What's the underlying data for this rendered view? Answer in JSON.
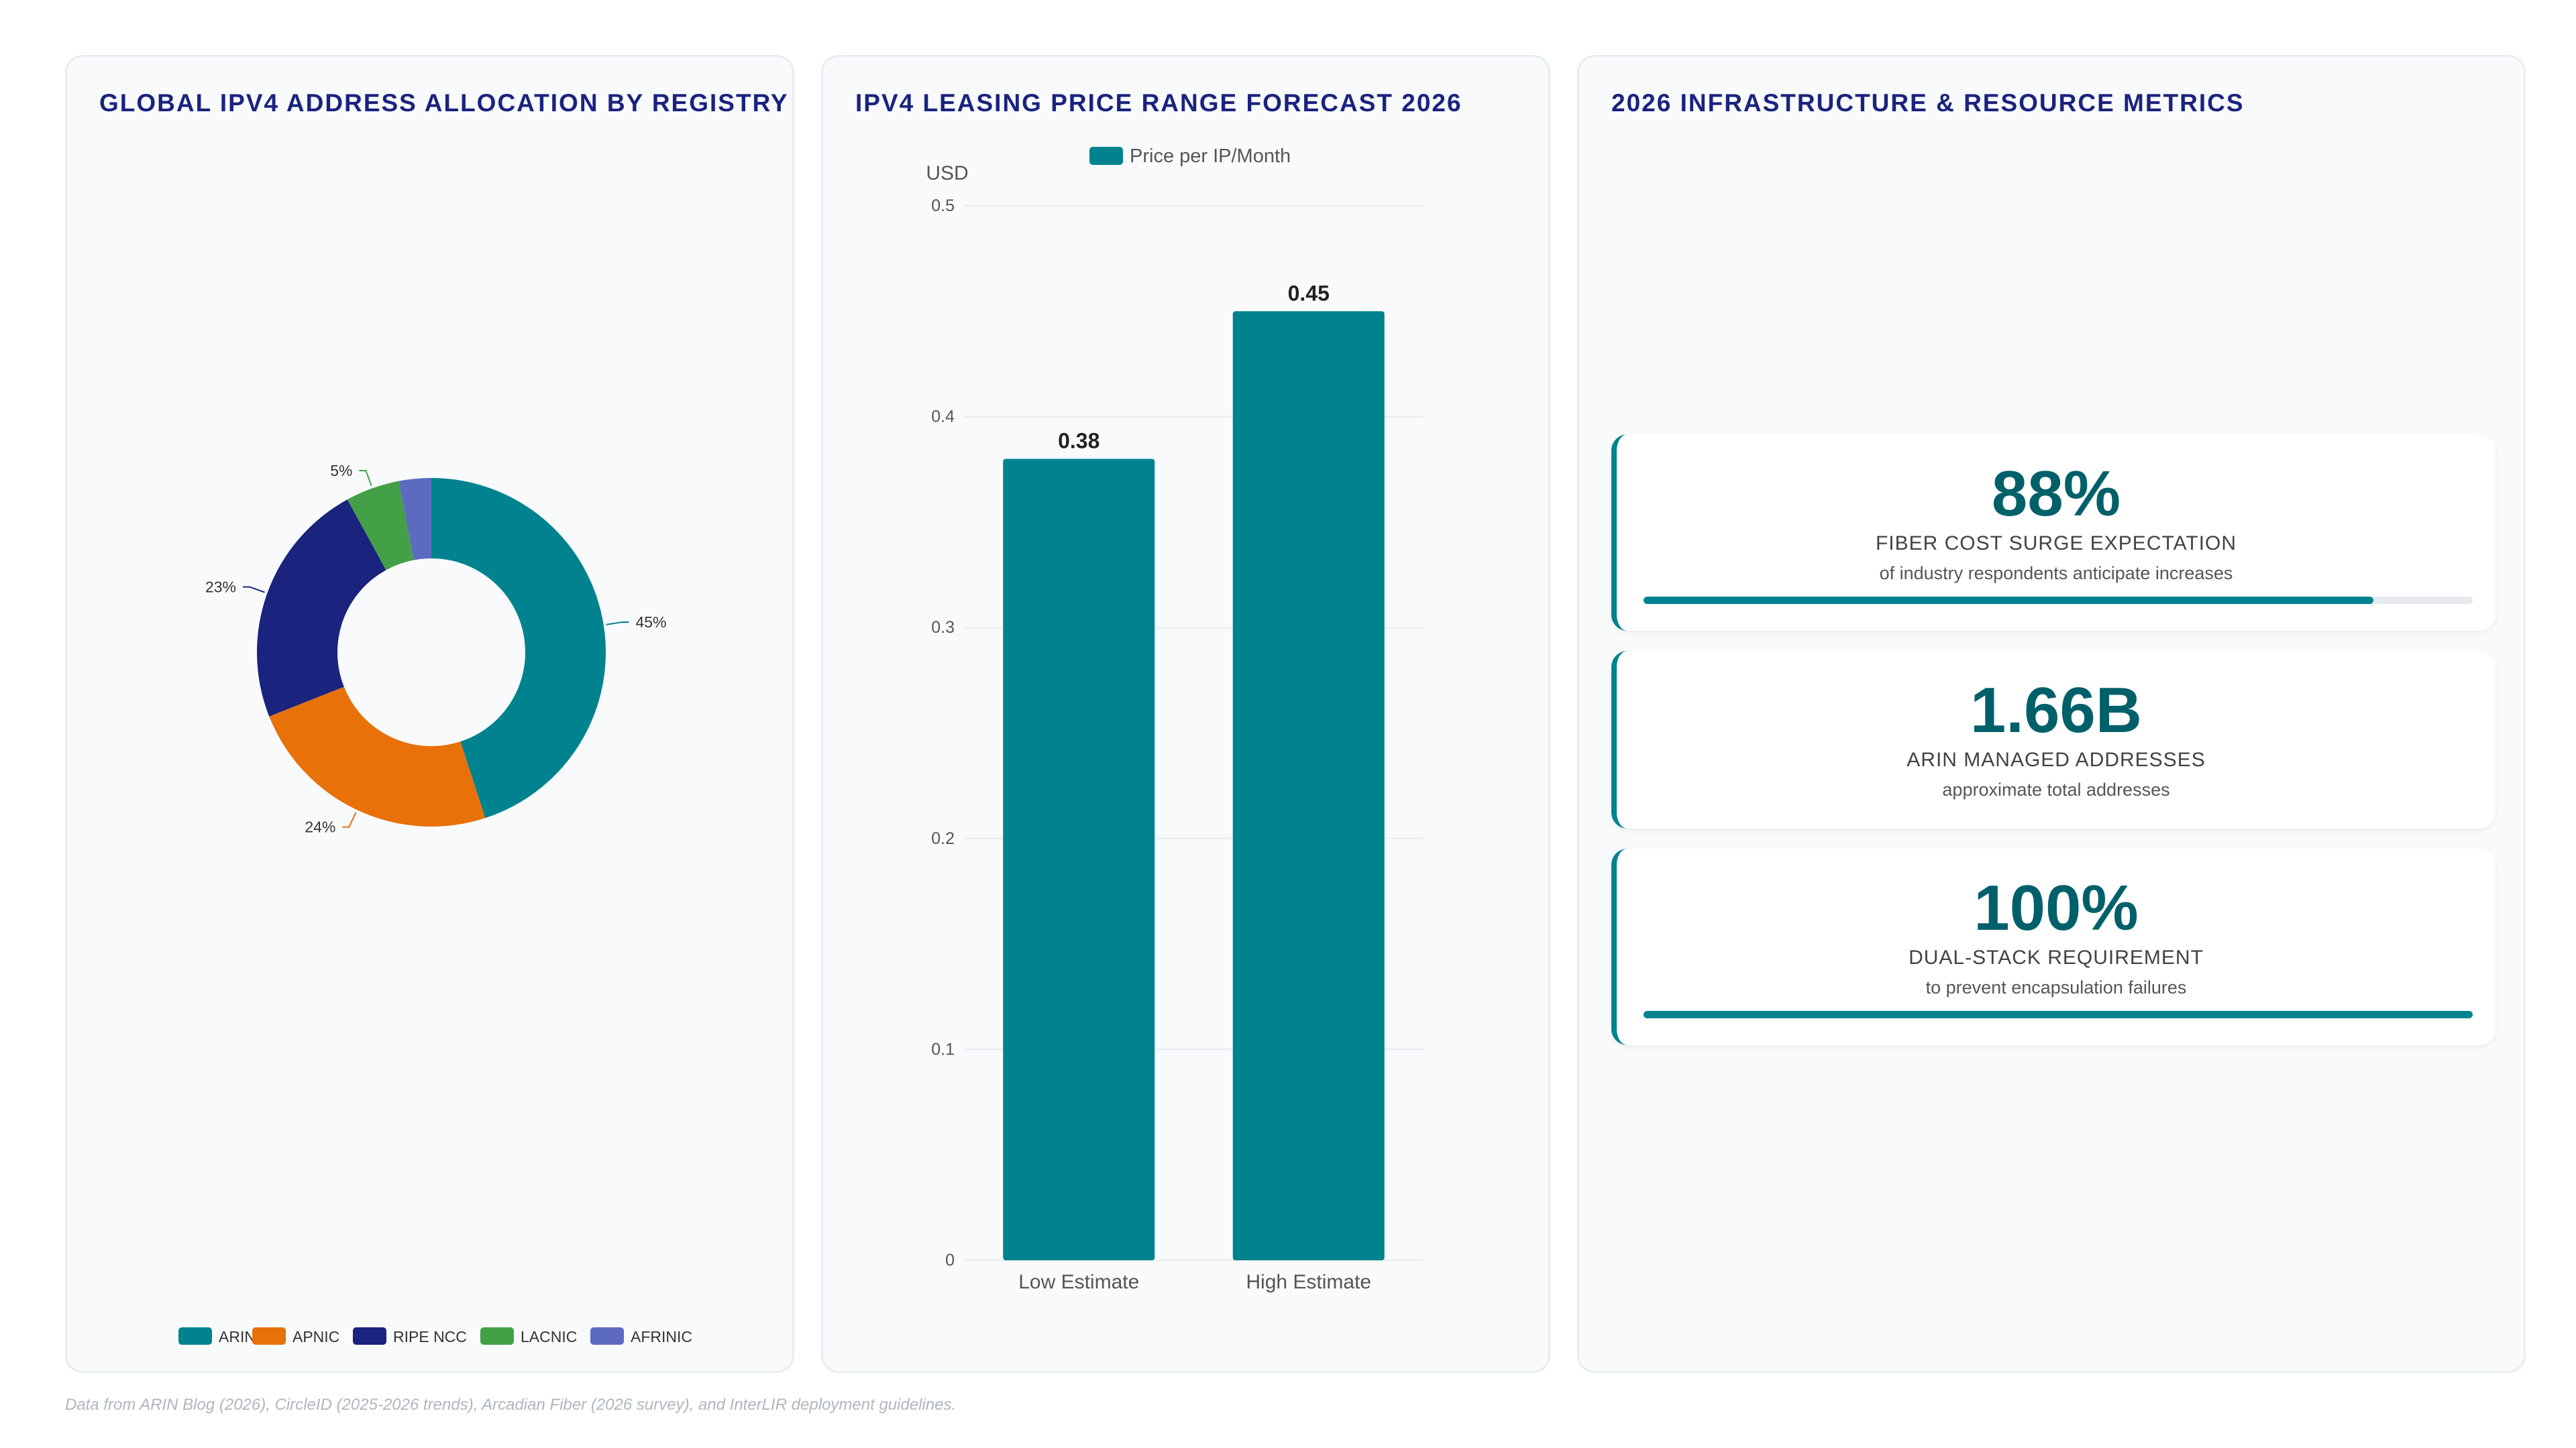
{
  "panels": {
    "donut_title": "GLOBAL IPV4 ADDRESS ALLOCATION BY REGISTRY",
    "bar_title": "IPV4 LEASING PRICE RANGE FORECAST 2026",
    "metrics_title": "2026 INFRASTRUCTURE & RESOURCE METRICS"
  },
  "chart_data": [
    {
      "type": "pie",
      "title": "GLOBAL IPV4 ADDRESS ALLOCATION BY REGISTRY",
      "donut": true,
      "categories": [
        "ARIN",
        "APNIC",
        "RIPE NCC",
        "LACNIC",
        "AFRINIC"
      ],
      "values": [
        45,
        24,
        23,
        5,
        3
      ],
      "colors": [
        "#00838f",
        "#e8710a",
        "#1a237e",
        "#43a047",
        "#5c6bc0"
      ],
      "data_labels": [
        "45%",
        "24%",
        "23%",
        "5%",
        ""
      ],
      "legend_position": "bottom"
    },
    {
      "type": "bar",
      "title": "IPV4 LEASING PRICE RANGE FORECAST 2026",
      "categories": [
        "Low Estimate",
        "High Estimate"
      ],
      "series": [
        {
          "name": "Price per IP/Month",
          "values": [
            0.38,
            0.45
          ],
          "color": "#00838f"
        }
      ],
      "data_labels": [
        "0.38",
        "0.45"
      ],
      "ylabel": "USD",
      "ylim": [
        0,
        0.5
      ],
      "yticks": [
        "0",
        "0.1",
        "0.2",
        "0.3",
        "0.4",
        "0.5"
      ],
      "grid": true,
      "legend_position": "top"
    }
  ],
  "metrics": [
    {
      "value": "88%",
      "label": "FIBER COST SURGE EXPECTATION",
      "sub": "of industry respondents anticipate increases",
      "progress": 0.88
    },
    {
      "value": "1.66B",
      "label": "ARIN MANAGED ADDRESSES",
      "sub": "approximate total addresses"
    },
    {
      "value": "100%",
      "label": "DUAL-STACK REQUIREMENT",
      "sub": "to prevent encapsulation failures",
      "progress": 1.0
    }
  ],
  "footnote": "Data from ARIN Blog (2026), CircleID (2025-2026 trends), Arcadian Fiber (2026 survey), and InterLIR deployment guidelines."
}
